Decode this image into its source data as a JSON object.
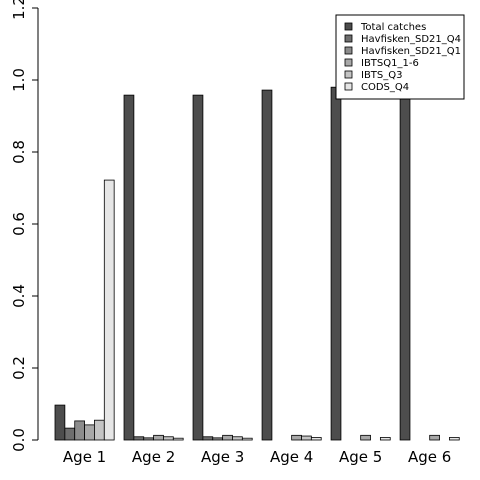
{
  "chart_data": {
    "type": "bar",
    "categories": [
      "Age 1",
      "Age 2",
      "Age 3",
      "Age 4",
      "Age 5",
      "Age 6"
    ],
    "series": [
      {
        "name": "Total catches",
        "color": "#4d4d4d",
        "values": [
          0.097,
          0.958,
          0.958,
          0.972,
          0.98,
          0.98
        ]
      },
      {
        "name": "Havfisken_SD21_Q4",
        "color": "#6e6e6e",
        "values": [
          0.033,
          0.009,
          0.009,
          0.0,
          0.0,
          0.0
        ]
      },
      {
        "name": "Havfisken_SD21_Q1",
        "color": "#8c8c8c",
        "values": [
          0.053,
          0.006,
          0.006,
          0.0,
          0.0,
          0.0
        ]
      },
      {
        "name": "IBTSQ1_1-6",
        "color": "#a8a8a8",
        "values": [
          0.042,
          0.013,
          0.013,
          0.013,
          0.013,
          0.013
        ]
      },
      {
        "name": "IBTS_Q3",
        "color": "#c4c4c4",
        "values": [
          0.055,
          0.009,
          0.009,
          0.011,
          0.0,
          0.0
        ]
      },
      {
        "name": "CODS_Q4",
        "color": "#e6e6e6",
        "values": [
          0.722,
          0.005,
          0.005,
          0.007,
          0.007,
          0.007
        ]
      }
    ],
    "ylim": [
      0,
      1.2
    ],
    "yticks": [
      "0.0",
      "0.2",
      "0.4",
      "0.6",
      "0.8",
      "1.0",
      "1.2"
    ],
    "legend_position": "top-right",
    "grid": false
  }
}
